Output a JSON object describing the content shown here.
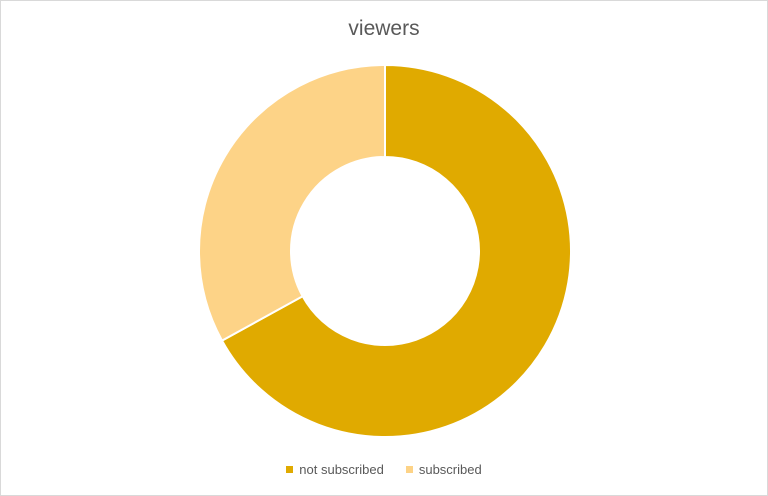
{
  "chart_data": {
    "type": "pie",
    "variant": "doughnut",
    "title": "viewers",
    "categories": [
      "not subscribed",
      "subscribed"
    ],
    "values": [
      67,
      33
    ],
    "colors": [
      "#e0aa00",
      "#fdd387"
    ],
    "legend_position": "bottom"
  }
}
